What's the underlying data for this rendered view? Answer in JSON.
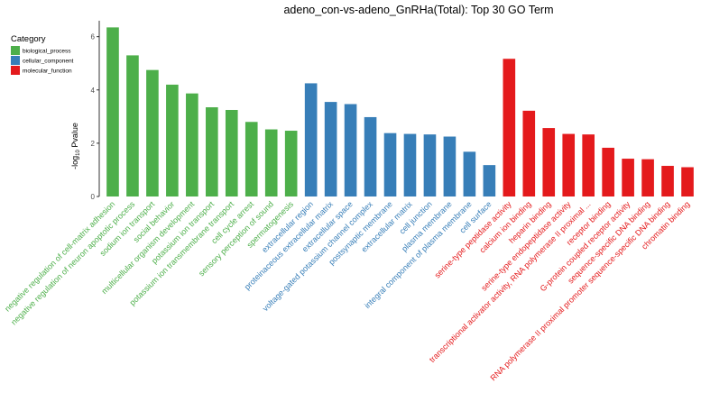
{
  "chart_data": {
    "type": "bar",
    "title": "adeno_con-vs-adeno_GnRHa(Total): Top 30 GO Term",
    "ylabel_main": "-log",
    "ylabel_sub": "10",
    "ylabel_tail": " Pvalue",
    "ylim": [
      0,
      6.6
    ],
    "yticks": [
      0,
      2,
      4,
      6
    ],
    "legend": {
      "title": "Category",
      "placement": "top-left",
      "entries": [
        {
          "name": "biological_process",
          "color": "#4daf4a"
        },
        {
          "name": "cellular_component",
          "color": "#377eb8"
        },
        {
          "name": "molecular_function",
          "color": "#e41a1c"
        }
      ]
    },
    "categories": [
      {
        "label": "negative regulation of cell-matrix adhesion",
        "value": 6.35,
        "group": "biological_process"
      },
      {
        "label": "negative regulation of neuron apoptotic process",
        "value": 5.3,
        "group": "biological_process"
      },
      {
        "label": "sodium ion transport",
        "value": 4.75,
        "group": "biological_process"
      },
      {
        "label": "social behavior",
        "value": 4.2,
        "group": "biological_process"
      },
      {
        "label": "multicellular organism development",
        "value": 3.87,
        "group": "biological_process"
      },
      {
        "label": "potassium ion transport",
        "value": 3.35,
        "group": "biological_process"
      },
      {
        "label": "potassium ion transmembrane transport",
        "value": 3.25,
        "group": "biological_process"
      },
      {
        "label": "cell cycle arrest",
        "value": 2.8,
        "group": "biological_process"
      },
      {
        "label": "sensory perception of sound",
        "value": 2.52,
        "group": "biological_process"
      },
      {
        "label": "spermatogenesis",
        "value": 2.47,
        "group": "biological_process"
      },
      {
        "label": "extracellular region",
        "value": 4.25,
        "group": "cellular_component"
      },
      {
        "label": "proteinaceous extracellular matrix",
        "value": 3.55,
        "group": "cellular_component"
      },
      {
        "label": "extracellular space",
        "value": 3.47,
        "group": "cellular_component"
      },
      {
        "label": "voltage-gated potassium channel complex",
        "value": 2.98,
        "group": "cellular_component"
      },
      {
        "label": "postsynaptic membrane",
        "value": 2.38,
        "group": "cellular_component"
      },
      {
        "label": "extracellular matrix",
        "value": 2.35,
        "group": "cellular_component"
      },
      {
        "label": "cell junction",
        "value": 2.33,
        "group": "cellular_component"
      },
      {
        "label": "plasma membrane",
        "value": 2.25,
        "group": "cellular_component"
      },
      {
        "label": "integral component of plasma membrane",
        "value": 1.68,
        "group": "cellular_component"
      },
      {
        "label": "cell surface",
        "value": 1.18,
        "group": "cellular_component"
      },
      {
        "label": "serine-type peptidase activity",
        "value": 5.17,
        "group": "molecular_function"
      },
      {
        "label": "calcium ion binding",
        "value": 3.22,
        "group": "molecular_function"
      },
      {
        "label": "heparin binding",
        "value": 2.57,
        "group": "molecular_function"
      },
      {
        "label": "serine-type endopeptidase activity",
        "value": 2.35,
        "group": "molecular_function"
      },
      {
        "label": "transcriptional activator activity, RNA polymerase II proximal ...",
        "value": 2.33,
        "group": "molecular_function"
      },
      {
        "label": "receptor binding",
        "value": 1.83,
        "group": "molecular_function"
      },
      {
        "label": "G-protein coupled receptor activity",
        "value": 1.42,
        "group": "molecular_function"
      },
      {
        "label": "sequence-specific DNA binding",
        "value": 1.4,
        "group": "molecular_function"
      },
      {
        "label": "RNA polymerase II proximal promoter sequence-specific DNA binding",
        "value": 1.15,
        "group": "molecular_function"
      },
      {
        "label": "chromatin binding",
        "value": 1.1,
        "group": "molecular_function"
      }
    ]
  }
}
